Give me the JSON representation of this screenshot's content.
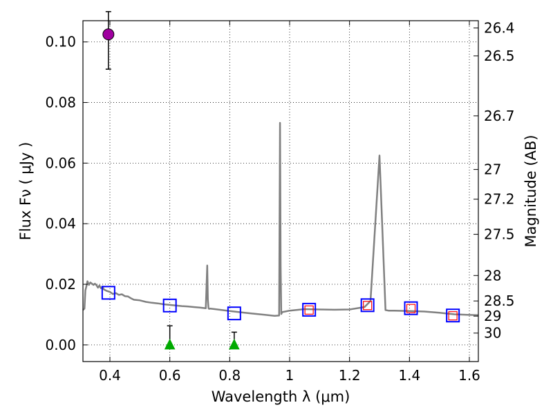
{
  "chart_data": {
    "type": "scatter",
    "xlabel": "Wavelength  λ (μm)",
    "ylabel": "Flux  Fν  ( μJy )",
    "ylabel_right": "Magnitude (AB)",
    "xlim": [
      0.31,
      1.63
    ],
    "ylim": [
      -0.0055,
      0.107
    ],
    "grid": true,
    "x_ticks": [
      0.4,
      0.6,
      0.8,
      1.0,
      1.2,
      1.4,
      1.6
    ],
    "x_tick_labels": [
      "0.4",
      "0.6",
      "0.8",
      "1",
      "1.2",
      "1.4",
      "1.6"
    ],
    "y_ticks": [
      0.0,
      0.02,
      0.04,
      0.06,
      0.08,
      0.1
    ],
    "y_tick_labels": [
      "0.00",
      "0.02",
      "0.04",
      "0.06",
      "0.08",
      "0.10"
    ],
    "magnitude_ticks": [
      {
        "flux": 0.1046,
        "label": "26.4"
      },
      {
        "flux": 0.0954,
        "label": "26.5"
      },
      {
        "flux": 0.0756,
        "label": "26.7"
      },
      {
        "flux": 0.0579,
        "label": "27"
      },
      {
        "flux": 0.0481,
        "label": "27.2"
      },
      {
        "flux": 0.0365,
        "label": "27.5"
      },
      {
        "flux": 0.0229,
        "label": "28"
      },
      {
        "flux": 0.0145,
        "label": "28.5"
      },
      {
        "flux": 0.0095,
        "label": "29"
      },
      {
        "flux": 0.0039,
        "label": "30"
      }
    ],
    "model_spectrum": {
      "color": "#808080",
      "x": [
        0.31,
        0.315,
        0.318,
        0.322,
        0.325,
        0.33,
        0.335,
        0.34,
        0.345,
        0.35,
        0.355,
        0.36,
        0.365,
        0.37,
        0.375,
        0.38,
        0.39,
        0.4,
        0.41,
        0.42,
        0.43,
        0.44,
        0.45,
        0.46,
        0.47,
        0.48,
        0.5,
        0.52,
        0.54,
        0.56,
        0.58,
        0.6,
        0.62,
        0.64,
        0.66,
        0.68,
        0.7,
        0.72,
        0.725,
        0.727,
        0.729,
        0.731,
        0.735,
        0.75,
        0.8,
        0.85,
        0.9,
        0.95,
        0.965,
        0.968,
        0.97,
        0.972,
        0.975,
        1.0,
        1.05,
        1.1,
        1.15,
        1.2,
        1.25,
        1.27,
        1.3,
        1.32,
        1.33,
        1.35,
        1.4,
        1.45,
        1.5,
        1.55,
        1.6,
        1.63
      ],
      "y": [
        0.0115,
        0.012,
        0.018,
        0.0195,
        0.021,
        0.0198,
        0.0206,
        0.0202,
        0.0198,
        0.0202,
        0.0197,
        0.0189,
        0.0196,
        0.0187,
        0.0192,
        0.0183,
        0.0178,
        0.0175,
        0.0168,
        0.0171,
        0.0165,
        0.0167,
        0.0161,
        0.016,
        0.0154,
        0.0149,
        0.0147,
        0.0142,
        0.0139,
        0.0137,
        0.0134,
        0.0132,
        0.013,
        0.0128,
        0.0127,
        0.0125,
        0.0123,
        0.0121,
        0.0262,
        0.015,
        0.0121,
        0.0119,
        0.012,
        0.0118,
        0.0112,
        0.0106,
        0.0101,
        0.0096,
        0.0097,
        0.0733,
        0.026,
        0.0102,
        0.0108,
        0.0113,
        0.0118,
        0.0117,
        0.0116,
        0.0117,
        0.0125,
        0.0145,
        0.0625,
        0.0115,
        0.0113,
        0.0113,
        0.0112,
        0.011,
        0.0106,
        0.0101,
        0.0099,
        0.0098
      ]
    },
    "series": [
      {
        "name": "detection-circle",
        "marker": "circle",
        "color": "#a000a0",
        "points": [
          {
            "x": 0.395,
            "y": 0.1025,
            "err_low": 0.0115,
            "err_high": 0.0075
          }
        ]
      },
      {
        "name": "upper-limits",
        "marker": "triangle",
        "color": "#00aa00",
        "points": [
          {
            "x": 0.6,
            "y": 0.0,
            "err_low": 0.0,
            "err_high": 0.0063
          },
          {
            "x": 0.815,
            "y": 0.0,
            "err_low": 0.0,
            "err_high": 0.0042
          }
        ]
      },
      {
        "name": "model-photometry",
        "marker": "square-open",
        "color": "#0000ff",
        "points": [
          {
            "x": 0.395,
            "y": 0.0172
          },
          {
            "x": 0.6,
            "y": 0.013
          },
          {
            "x": 0.815,
            "y": 0.0104
          },
          {
            "x": 1.065,
            "y": 0.0116
          },
          {
            "x": 1.26,
            "y": 0.0131
          },
          {
            "x": 1.405,
            "y": 0.0121
          },
          {
            "x": 1.545,
            "y": 0.0097
          }
        ]
      },
      {
        "name": "observed-photometry",
        "marker": "square-small",
        "color": "#ff0000",
        "points": [
          {
            "x": 1.065,
            "y": 0.0115
          },
          {
            "x": 1.26,
            "y": 0.013
          },
          {
            "x": 1.405,
            "y": 0.012
          },
          {
            "x": 1.545,
            "y": 0.0096
          }
        ]
      }
    ]
  }
}
